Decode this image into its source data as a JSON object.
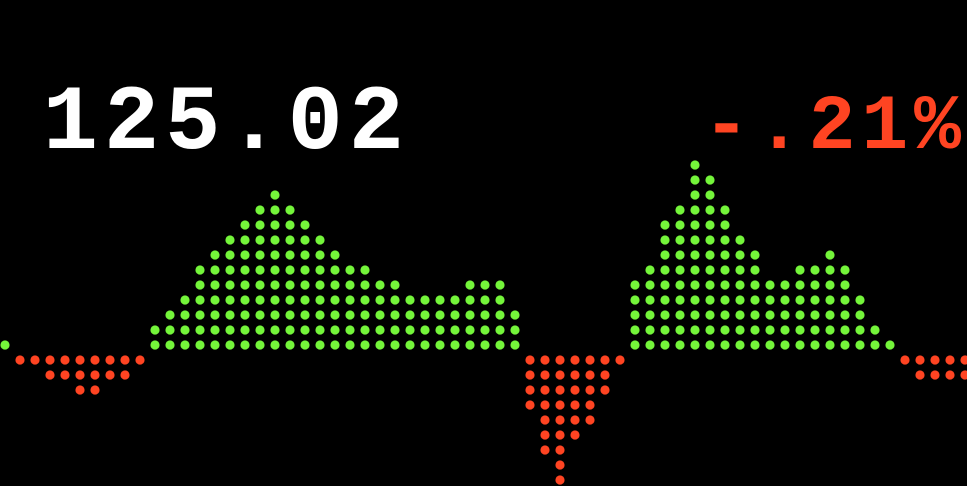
{
  "quote": {
    "price": "125.02",
    "change": "-.21%"
  },
  "chart_data": {
    "type": "dot-column",
    "up_color": "#74f53a",
    "down_color": "#ff4422",
    "values": [
      1,
      -1,
      -1,
      -2,
      -2,
      -3,
      -3,
      -2,
      -2,
      -1,
      2,
      3,
      4,
      6,
      7,
      8,
      9,
      10,
      11,
      10,
      9,
      8,
      7,
      6,
      6,
      5,
      5,
      4,
      4,
      4,
      4,
      5,
      5,
      5,
      3,
      -4,
      -7,
      -9,
      -6,
      -5,
      -3,
      -1,
      5,
      6,
      9,
      10,
      13,
      12,
      10,
      8,
      7,
      5,
      5,
      6,
      6,
      7,
      6,
      4,
      2,
      1,
      -1,
      -2,
      -2,
      -2,
      -2
    ]
  }
}
